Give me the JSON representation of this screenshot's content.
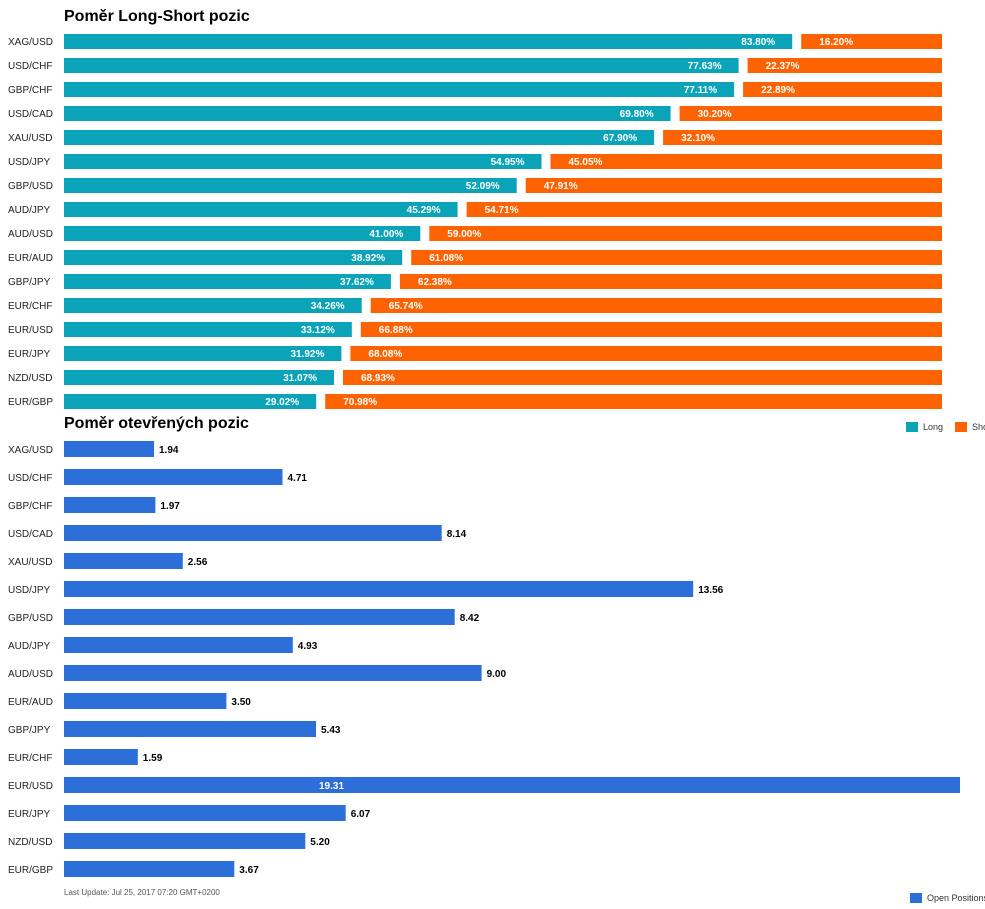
{
  "colors": {
    "long": "#0aa3b8",
    "short": "#ff6200",
    "open": "#2d6fd9"
  },
  "chart_data": [
    {
      "type": "bar",
      "orientation": "horizontal",
      "stacked": "percent",
      "title": "Poměr Long-Short pozic",
      "categories": [
        "XAG/USD",
        "USD/CHF",
        "GBP/CHF",
        "USD/CAD",
        "XAU/USD",
        "USD/JPY",
        "GBP/USD",
        "AUD/JPY",
        "AUD/USD",
        "EUR/AUD",
        "GBP/JPY",
        "EUR/CHF",
        "EUR/USD",
        "EUR/JPY",
        "NZD/USD",
        "EUR/GBP"
      ],
      "series": [
        {
          "name": "Long",
          "values": [
            83.8,
            77.63,
            77.11,
            69.8,
            67.9,
            54.95,
            52.09,
            45.29,
            41.0,
            38.92,
            37.62,
            34.26,
            33.12,
            31.92,
            31.07,
            29.02
          ],
          "labels": [
            "83.80%",
            "77.63%",
            "77.11%",
            "69.80%",
            "67.90%",
            "54.95%",
            "52.09%",
            "45.29%",
            "41.00%",
            "38.92%",
            "37.62%",
            "34.26%",
            "33.12%",
            "31.92%",
            "31.07%",
            "29.02%"
          ]
        },
        {
          "name": "Short",
          "values": [
            16.2,
            22.37,
            22.89,
            30.2,
            32.1,
            45.05,
            47.91,
            54.71,
            59.0,
            61.08,
            62.38,
            65.74,
            66.88,
            68.08,
            68.93,
            70.98
          ],
          "labels": [
            "16.20%",
            "22.37%",
            "22.89%",
            "30.20%",
            "32.10%",
            "45.05%",
            "47.91%",
            "54.71%",
            "59.00%",
            "61.08%",
            "62.38%",
            "65.74%",
            "66.88%",
            "68.08%",
            "68.93%",
            "70.98%"
          ]
        }
      ],
      "legend_position": "bottom-right",
      "grid": false
    },
    {
      "type": "bar",
      "orientation": "horizontal",
      "title": "Poměr otevřených pozic",
      "categories": [
        "XAG/USD",
        "USD/CHF",
        "GBP/CHF",
        "USD/CAD",
        "XAU/USD",
        "USD/JPY",
        "GBP/USD",
        "AUD/JPY",
        "AUD/USD",
        "EUR/AUD",
        "GBP/JPY",
        "EUR/CHF",
        "EUR/USD",
        "EUR/JPY",
        "NZD/USD",
        "EUR/GBP"
      ],
      "series": [
        {
          "name": "Open Positions",
          "values": [
            1.94,
            4.71,
            1.97,
            8.14,
            2.56,
            13.56,
            8.42,
            4.93,
            9.0,
            3.5,
            5.43,
            1.59,
            19.31,
            6.07,
            5.2,
            3.67
          ],
          "labels": [
            "1.94",
            "4.71",
            "1.97",
            "8.14",
            "2.56",
            "13.56",
            "8.42",
            "4.93",
            "9.00",
            "3.50",
            "5.43",
            "1.59",
            "19.31",
            "6.07",
            "5.20",
            "3.67"
          ]
        }
      ],
      "xlim": [
        0,
        19.31
      ],
      "legend_position": "bottom-right",
      "grid": false
    }
  ],
  "footer": {
    "last_update": "Last Update: Jul 25, 2017 07:20 GMT+0200"
  }
}
